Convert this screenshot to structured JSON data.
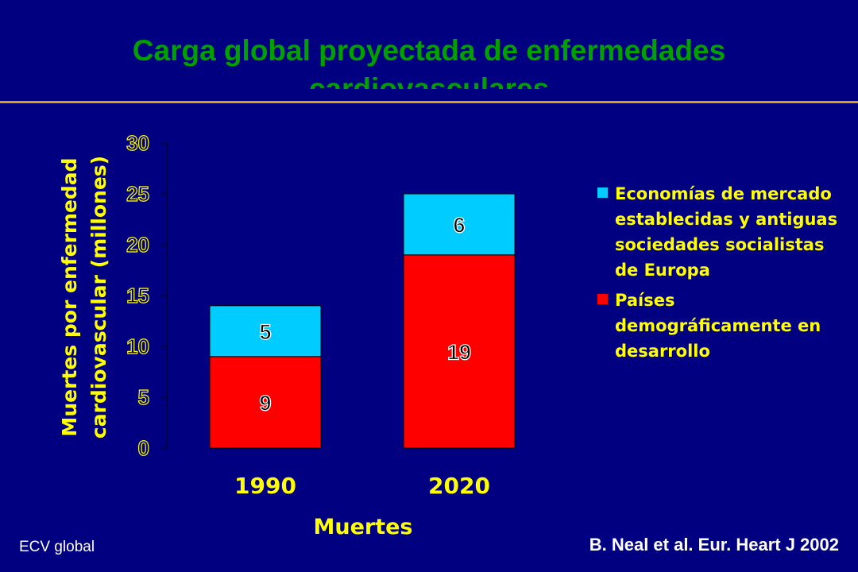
{
  "slide": {
    "title_line1": "Carga global proyectada de enfermedades",
    "title_line2": "cardiovasculares",
    "footer_left": "ECV global",
    "footer_right": "B. Neal et al. Eur. Heart J 2002"
  },
  "colors": {
    "background": "#000080",
    "title": "#00A000",
    "rule": "#D4A017",
    "axis_text": "#FFFF00",
    "series_developed": "#00CCFF",
    "series_developing": "#FF0000"
  },
  "chart_data": {
    "type": "bar",
    "stacked": true,
    "categories": [
      "1990",
      "2020"
    ],
    "series": [
      {
        "name": "Países demográficamente en desarrollo",
        "values": [
          9,
          19
        ],
        "labels": [
          "9",
          "19"
        ],
        "color": "#FF0000"
      },
      {
        "name": "Economías de mercado establecidas y antiguas sociedades socialistas de Europa",
        "values": [
          5,
          6
        ],
        "labels": [
          "5",
          "6"
        ],
        "color": "#00CCFF"
      }
    ],
    "xlabel": "Muertes",
    "ylabel_line1": "Muertes por enfermedad",
    "ylabel_line2": "cardiovascular (millones)",
    "ylim": [
      0,
      30
    ],
    "yticks": [
      "0",
      "5",
      "10",
      "15",
      "20",
      "25",
      "30"
    ],
    "legend_order": [
      1,
      0
    ],
    "legend_placement": "right",
    "grid": false
  }
}
